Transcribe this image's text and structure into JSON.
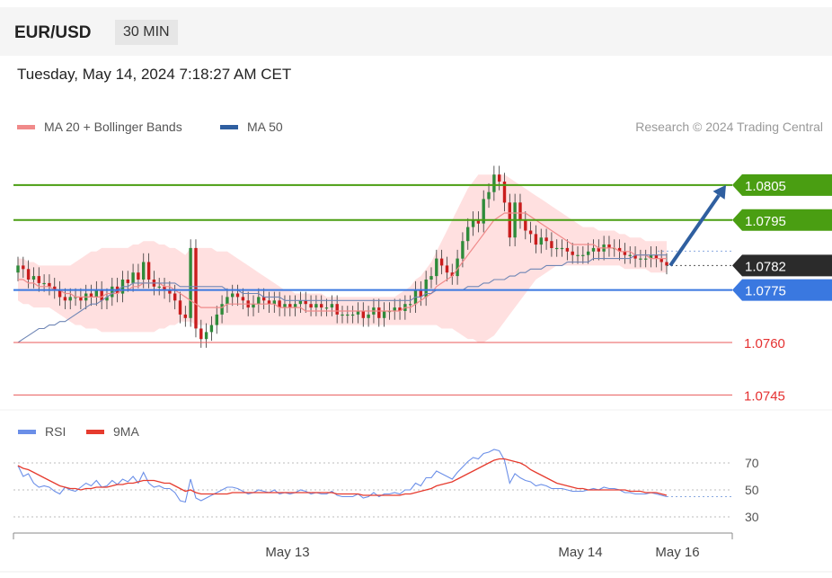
{
  "header": {
    "symbol": "EUR/USD",
    "timeframe": "30 MIN"
  },
  "timestamp": "Tuesday, May 14, 2024 7:18:27 AM CET",
  "credit": "Research © 2024 Trading Central",
  "colors": {
    "resistance": "#4a9e12",
    "support": "#3a78e0",
    "secondary_support": "#e85a5a",
    "current": "#2b2b2b",
    "bollinger_band": "#ffd3d3",
    "ma20": "#f08a8a",
    "ma50": "#6f86b5",
    "candle_up": "#2e8b3a",
    "candle_down": "#c91d1d",
    "arrow": "#2f5fa0",
    "rsi": "#6b8fe8",
    "rsi_9ma": "#e63b2e"
  },
  "chart_data": [
    {
      "type": "line",
      "title": "EUR/USD price (30-minute candles)",
      "legend": [
        {
          "name": "MA 20 + Bollinger Bands",
          "color": "#f08a8a"
        },
        {
          "name": "MA 50",
          "color": "#2f5fa0"
        }
      ],
      "ylim": [
        1.0741,
        1.08155
      ],
      "x_ticks": [
        "May 13",
        "May 14",
        "May 16"
      ],
      "levels": [
        {
          "label": "1.0805",
          "value": 1.0805,
          "kind": "resistance"
        },
        {
          "label": "1.0795",
          "value": 1.0795,
          "kind": "resistance"
        },
        {
          "label": "1.0782",
          "value": 1.0782,
          "kind": "current"
        },
        {
          "label": "1.0775",
          "value": 1.0775,
          "kind": "support"
        },
        {
          "label": "1.0760",
          "value": 1.076,
          "kind": "secondary_support"
        },
        {
          "label": "1.0745",
          "value": 1.0745,
          "kind": "secondary_support"
        }
      ],
      "close": [
        1.0782,
        1.0781,
        1.0778,
        1.0779,
        1.0777,
        1.0777,
        1.0776,
        1.0775,
        1.0773,
        1.0772,
        1.0773,
        1.0773,
        1.0772,
        1.0774,
        1.0773,
        1.0775,
        1.0772,
        1.0773,
        1.0776,
        1.0774,
        1.0778,
        1.0777,
        1.078,
        1.0778,
        1.0783,
        1.0778,
        1.0776,
        1.0776,
        1.0775,
        1.0774,
        1.0772,
        1.0768,
        1.0767,
        1.0787,
        1.0764,
        1.0761,
        1.0763,
        1.0765,
        1.0768,
        1.0771,
        1.0773,
        1.0774,
        1.0773,
        1.0772,
        1.077,
        1.0771,
        1.0773,
        1.0772,
        1.0771,
        1.0772,
        1.077,
        1.0771,
        1.077,
        1.0771,
        1.0772,
        1.0771,
        1.077,
        1.0771,
        1.077,
        1.077,
        1.0771,
        1.0768,
        1.0768,
        1.0768,
        1.0768,
        1.0769,
        1.0767,
        1.0768,
        1.077,
        1.0767,
        1.0769,
        1.0769,
        1.077,
        1.0769,
        1.0771,
        1.0771,
        1.0775,
        1.0773,
        1.0778,
        1.0779,
        1.0784,
        1.0782,
        1.078,
        1.0779,
        1.0784,
        1.0789,
        1.0793,
        1.0795,
        1.0794,
        1.0801,
        1.0803,
        1.0808,
        1.0806,
        1.08,
        1.079,
        1.08,
        1.0795,
        1.0792,
        1.0791,
        1.0788,
        1.079,
        1.0789,
        1.0787,
        1.0787,
        1.0787,
        1.0786,
        1.0785,
        1.0785,
        1.0785,
        1.0786,
        1.0787,
        1.0786,
        1.0788,
        1.0787,
        1.0787,
        1.0786,
        1.0785,
        1.0785,
        1.0784,
        1.0784,
        1.0784,
        1.0785,
        1.0784,
        1.0783,
        1.0782
      ],
      "ma20": [
        1.0778,
        1.0778,
        1.0777,
        1.0777,
        1.0776,
        1.0776,
        1.0776,
        1.0775,
        1.0775,
        1.0774,
        1.0774,
        1.0773,
        1.0773,
        1.0773,
        1.0773,
        1.0773,
        1.0773,
        1.0774,
        1.0774,
        1.0774,
        1.0775,
        1.0775,
        1.0776,
        1.0776,
        1.0777,
        1.0777,
        1.0777,
        1.0777,
        1.0776,
        1.0776,
        1.0775,
        1.0774,
        1.0773,
        1.0772,
        1.0771,
        1.077,
        1.077,
        1.077,
        1.077,
        1.077,
        1.0771,
        1.0771,
        1.0771,
        1.0771,
        1.0771,
        1.0771,
        1.0771,
        1.0771,
        1.0771,
        1.0771,
        1.077,
        1.077,
        1.077,
        1.077,
        1.077,
        1.0769,
        1.0769,
        1.0769,
        1.0769,
        1.0769,
        1.0769,
        1.0769,
        1.0769,
        1.0769,
        1.0769,
        1.0769,
        1.0769,
        1.0769,
        1.0769,
        1.0769,
        1.0769,
        1.0769,
        1.0769,
        1.0769,
        1.077,
        1.077,
        1.0771,
        1.0772,
        1.0773,
        1.0774,
        1.0776,
        1.0777,
        1.0778,
        1.0779,
        1.0781,
        1.0783,
        1.0785,
        1.0787,
        1.0789,
        1.0791,
        1.0793,
        1.0795,
        1.0796,
        1.0797,
        1.0797,
        1.0797,
        1.0797,
        1.0797,
        1.0796,
        1.0795,
        1.0794,
        1.0793,
        1.0792,
        1.0791,
        1.079,
        1.0789,
        1.0788,
        1.0788,
        1.0788,
        1.0788,
        1.0788,
        1.0787,
        1.0787,
        1.0787,
        1.0787,
        1.0786,
        1.0786,
        1.0786,
        1.0785,
        1.0785,
        1.0785,
        1.0784,
        1.0784,
        1.0784,
        1.0784
      ],
      "bb_upper": [
        1.0784,
        1.0784,
        1.0783,
        1.0783,
        1.0782,
        1.0782,
        1.0782,
        1.0782,
        1.0782,
        1.0782,
        1.0782,
        1.0783,
        1.0784,
        1.0785,
        1.0786,
        1.0786,
        1.0787,
        1.0787,
        1.0787,
        1.0787,
        1.0787,
        1.0787,
        1.0788,
        1.0788,
        1.0789,
        1.0789,
        1.0789,
        1.0788,
        1.0788,
        1.0787,
        1.0787,
        1.0786,
        1.0785,
        1.0787,
        1.0787,
        1.0787,
        1.0787,
        1.0787,
        1.0786,
        1.0786,
        1.0786,
        1.0785,
        1.0784,
        1.0783,
        1.0782,
        1.0781,
        1.078,
        1.0779,
        1.0778,
        1.0777,
        1.0776,
        1.0775,
        1.0775,
        1.0774,
        1.0774,
        1.0774,
        1.0774,
        1.0774,
        1.0774,
        1.0773,
        1.0773,
        1.0773,
        1.0773,
        1.0773,
        1.0773,
        1.0773,
        1.0773,
        1.0773,
        1.0773,
        1.0773,
        1.0773,
        1.0773,
        1.0773,
        1.0774,
        1.0775,
        1.0776,
        1.0778,
        1.0779,
        1.0781,
        1.0783,
        1.0786,
        1.0789,
        1.0792,
        1.0795,
        1.0798,
        1.0801,
        1.0804,
        1.0806,
        1.0808,
        1.0808,
        1.0808,
        1.0808,
        1.0808,
        1.0808,
        1.0807,
        1.0806,
        1.0805,
        1.0804,
        1.0803,
        1.0802,
        1.0801,
        1.08,
        1.0799,
        1.0798,
        1.0797,
        1.0796,
        1.0795,
        1.0794,
        1.0793,
        1.0793,
        1.0793,
        1.0792,
        1.0792,
        1.0792,
        1.0792,
        1.0791,
        1.0791,
        1.079,
        1.079,
        1.079,
        1.0789,
        1.0789,
        1.0789,
        1.0789,
        1.0789
      ],
      "bb_lower": [
        1.0772,
        1.0771,
        1.0771,
        1.077,
        1.077,
        1.077,
        1.077,
        1.0769,
        1.0768,
        1.0767,
        1.0766,
        1.0765,
        1.0765,
        1.0764,
        1.0764,
        1.0764,
        1.0763,
        1.0763,
        1.0763,
        1.0763,
        1.0763,
        1.0763,
        1.0763,
        1.0763,
        1.0763,
        1.0763,
        1.0763,
        1.0764,
        1.0764,
        1.0765,
        1.0765,
        1.0766,
        1.0766,
        1.0766,
        1.0765,
        1.0765,
        1.0765,
        1.0765,
        1.0765,
        1.0765,
        1.0765,
        1.0765,
        1.0765,
        1.0765,
        1.0765,
        1.0765,
        1.0765,
        1.0765,
        1.0765,
        1.0765,
        1.0765,
        1.0765,
        1.0765,
        1.0765,
        1.0765,
        1.0765,
        1.0765,
        1.0765,
        1.0765,
        1.0765,
        1.0765,
        1.0765,
        1.0765,
        1.0765,
        1.0765,
        1.0765,
        1.0765,
        1.0765,
        1.0765,
        1.0765,
        1.0765,
        1.0765,
        1.0765,
        1.0765,
        1.0765,
        1.0765,
        1.0765,
        1.0765,
        1.0765,
        1.0765,
        1.0765,
        1.0764,
        1.0764,
        1.0764,
        1.0763,
        1.0762,
        1.0761,
        1.0761,
        1.076,
        1.076,
        1.0761,
        1.0762,
        1.0764,
        1.0766,
        1.0768,
        1.077,
        1.0772,
        1.0774,
        1.0776,
        1.0778,
        1.0779,
        1.078,
        1.0781,
        1.0782,
        1.0782,
        1.0782,
        1.0782,
        1.0782,
        1.0782,
        1.0782,
        1.0782,
        1.0782,
        1.0782,
        1.0782,
        1.0782,
        1.0782,
        1.0781,
        1.0781,
        1.0781,
        1.0781,
        1.0781,
        1.078,
        1.078,
        1.078,
        1.078
      ],
      "ma50": [
        1.076,
        1.0761,
        1.0762,
        1.0763,
        1.0764,
        1.0764,
        1.0765,
        1.0765,
        1.0766,
        1.0766,
        1.0767,
        1.0768,
        1.0769,
        1.077,
        1.0771,
        1.0771,
        1.0772,
        1.0773,
        1.0774,
        1.0775,
        1.0776,
        1.0776,
        1.0777,
        1.0777,
        1.0777,
        1.0777,
        1.0777,
        1.0777,
        1.0777,
        1.0777,
        1.0777,
        1.0776,
        1.0776,
        1.0776,
        1.0776,
        1.0776,
        1.0776,
        1.0776,
        1.0776,
        1.0776,
        1.0775,
        1.0775,
        1.0775,
        1.0774,
        1.0774,
        1.0774,
        1.0774,
        1.0773,
        1.0773,
        1.0773,
        1.0773,
        1.0772,
        1.0772,
        1.0772,
        1.0772,
        1.0772,
        1.0772,
        1.0772,
        1.0772,
        1.0772,
        1.0772,
        1.0772,
        1.0772,
        1.0772,
        1.0772,
        1.0772,
        1.0772,
        1.0772,
        1.0772,
        1.0772,
        1.0772,
        1.0772,
        1.0772,
        1.0772,
        1.0772,
        1.0772,
        1.0773,
        1.0773,
        1.0774,
        1.0774,
        1.0775,
        1.0775,
        1.0775,
        1.0775,
        1.0775,
        1.0775,
        1.0776,
        1.0776,
        1.0776,
        1.0777,
        1.0777,
        1.0778,
        1.0778,
        1.0778,
        1.0779,
        1.0779,
        1.078,
        1.078,
        1.0781,
        1.0781,
        1.0781,
        1.0782,
        1.0782,
        1.0782,
        1.0782,
        1.0783,
        1.0783,
        1.0783,
        1.0783,
        1.0783,
        1.0784,
        1.0784,
        1.0784,
        1.0784,
        1.0784,
        1.0784,
        1.0784,
        1.0784,
        1.0785,
        1.0785,
        1.0785,
        1.0785,
        1.0785,
        1.0785,
        1.0785
      ],
      "projection": {
        "from": 1.0782,
        "to": 1.0805
      }
    },
    {
      "type": "line",
      "title": "RSI",
      "legend": [
        {
          "name": "RSI",
          "color": "#6b8fe8"
        },
        {
          "name": "9MA",
          "color": "#e63b2e"
        }
      ],
      "ylim": [
        20,
        80
      ],
      "y_ticks": [
        70,
        50,
        30
      ],
      "rsi": [
        68,
        60,
        62,
        55,
        52,
        53,
        52,
        49,
        47,
        52,
        50,
        49,
        52,
        55,
        53,
        57,
        52,
        53,
        57,
        54,
        58,
        56,
        60,
        55,
        63,
        55,
        52,
        53,
        51,
        51,
        48,
        42,
        41,
        58,
        44,
        42,
        44,
        46,
        48,
        50,
        52,
        52,
        51,
        49,
        47,
        48,
        50,
        49,
        48,
        50,
        47,
        48,
        47,
        48,
        50,
        49,
        47,
        48,
        47,
        47,
        49,
        46,
        45,
        45,
        45,
        47,
        44,
        45,
        48,
        45,
        47,
        47,
        48,
        47,
        50,
        50,
        55,
        53,
        59,
        59,
        64,
        62,
        60,
        58,
        63,
        67,
        71,
        74,
        73,
        77,
        78,
        80,
        79,
        72,
        55,
        62,
        59,
        57,
        56,
        53,
        54,
        53,
        51,
        51,
        51,
        50,
        49,
        49,
        49,
        50,
        51,
        50,
        52,
        51,
        51,
        50,
        48,
        48,
        47,
        47,
        47,
        48,
        47,
        46,
        45
      ],
      "ma9": [
        68,
        66,
        65,
        63,
        61,
        59,
        57,
        55,
        53,
        52,
        51,
        51,
        50,
        51,
        51,
        52,
        52,
        52,
        53,
        54,
        54,
        55,
        55,
        56,
        57,
        57,
        57,
        56,
        55,
        55,
        53,
        51,
        49,
        50,
        48,
        47,
        47,
        47,
        47,
        47,
        47,
        48,
        48,
        48,
        48,
        48,
        48,
        48,
        48,
        48,
        48,
        48,
        48,
        48,
        48,
        48,
        48,
        48,
        48,
        48,
        48,
        47,
        47,
        47,
        47,
        47,
        46,
        46,
        46,
        46,
        46,
        46,
        46,
        46,
        47,
        47,
        48,
        49,
        50,
        51,
        53,
        54,
        55,
        56,
        58,
        60,
        62,
        64,
        66,
        68,
        70,
        72,
        73,
        73,
        72,
        71,
        70,
        68,
        65,
        63,
        61,
        59,
        57,
        55,
        54,
        53,
        52,
        51,
        51,
        50,
        50,
        50,
        50,
        50,
        50,
        50,
        50,
        49,
        49,
        49,
        48,
        48,
        48,
        47,
        46
      ]
    }
  ]
}
